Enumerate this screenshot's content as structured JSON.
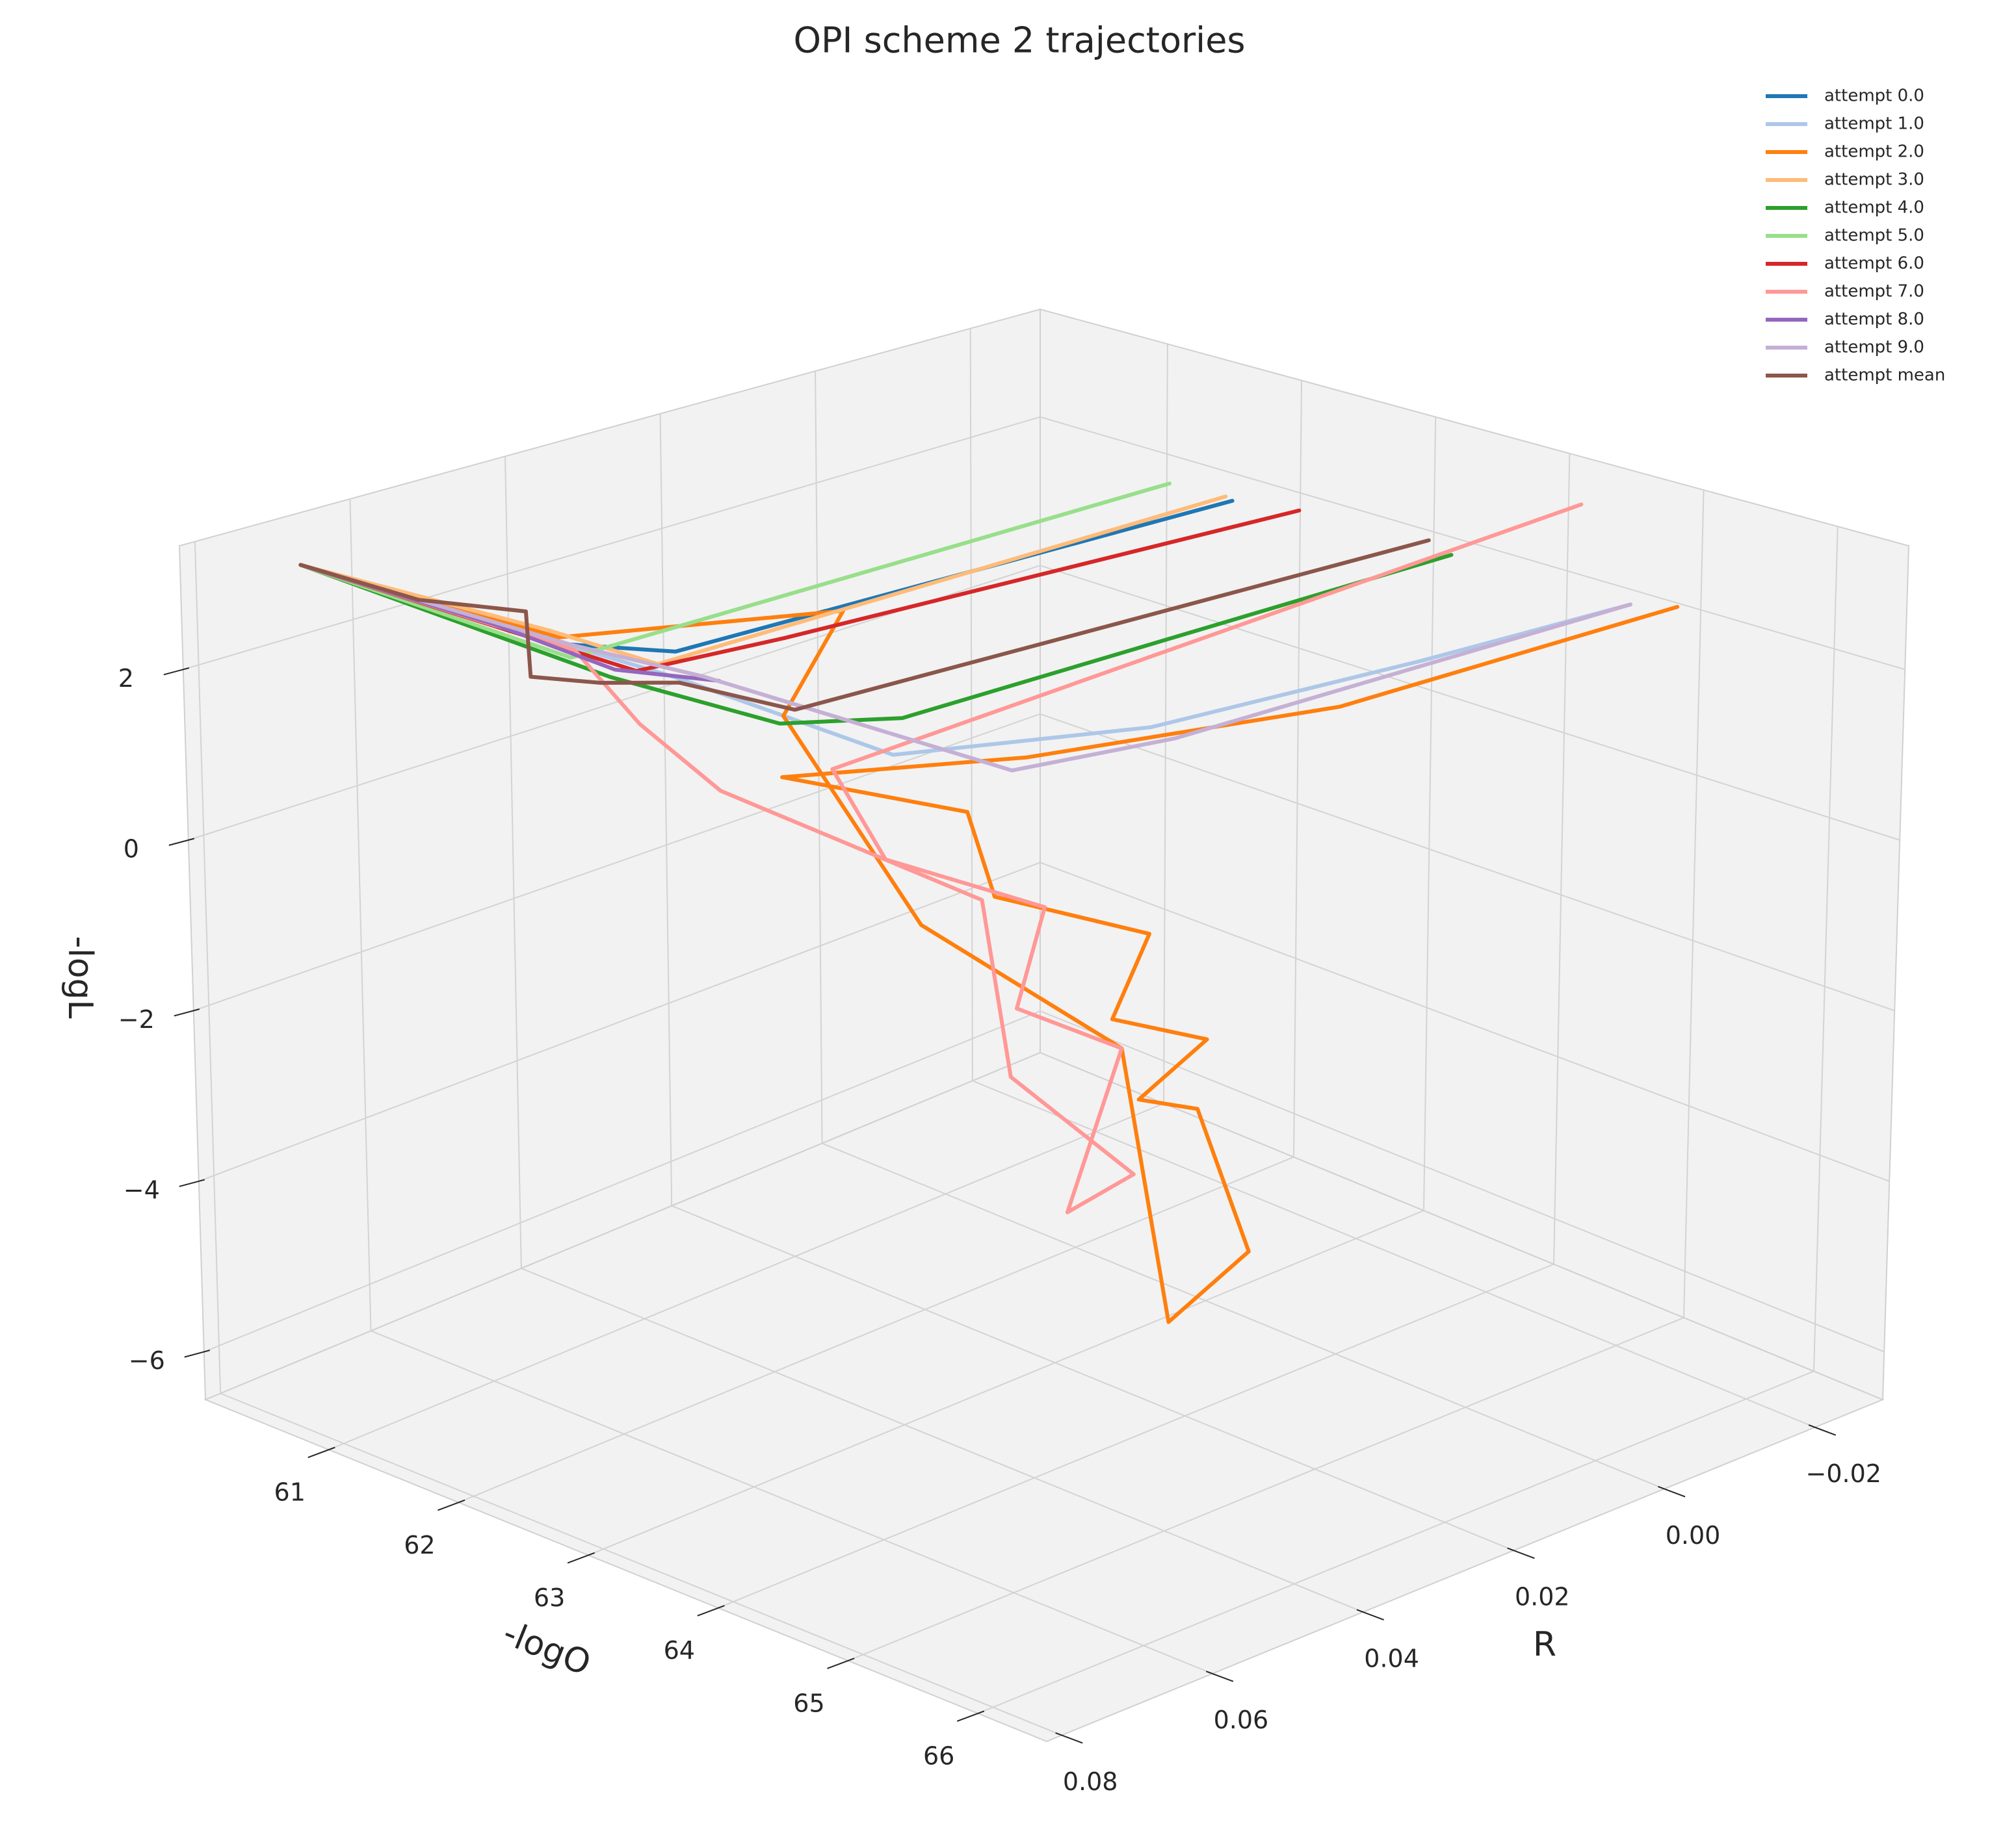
{
  "chart_data": {
    "type": "line3d",
    "title": "OPI scheme 2 trajectories",
    "xlabel": "R",
    "ylabel": "-logO",
    "zlabel": "-logL",
    "xlim": [
      -0.029,
      0.082
    ],
    "ylim": [
      60.05,
      66.53
    ],
    "zlim": [
      -6.56,
      3.45
    ],
    "xticks": [
      {
        "value": -0.02,
        "label": "−0.02"
      },
      {
        "value": 0,
        "label": "0.00"
      },
      {
        "value": 0.02,
        "label": "0.02"
      },
      {
        "value": 0.04,
        "label": "0.04"
      },
      {
        "value": 0.06,
        "label": "0.06"
      },
      {
        "value": 0.08,
        "label": "0.08"
      }
    ],
    "yticks": [
      61,
      62,
      63,
      64,
      65,
      66
    ],
    "zticks": [
      {
        "value": -6,
        "label": "−6"
      },
      {
        "value": -4,
        "label": "−4"
      },
      {
        "value": -2,
        "label": "−2"
      },
      0,
      2
    ],
    "grid": true,
    "legend": "upper right",
    "series": [
      {
        "name": "attempt 0.0",
        "color": "#1f77b4",
        "x": [
          -0.02,
          0.05,
          0.061,
          0.072
        ],
        "y": [
          62.01,
          61.89,
          61.74,
          60.37
        ],
        "z": [
          2.16,
          2.15,
          2.45,
          3.1
        ]
      },
      {
        "name": "attempt 1.0",
        "color": "#aec7e8",
        "x": [
          -0.02,
          0.004,
          0.033,
          0.056,
          0.058,
          0.072
        ],
        "y": [
          64.99,
          64.82,
          64.47,
          63.87,
          62.36,
          60.37
        ],
        "z": [
          2.29,
          2.15,
          1.95,
          1.95,
          2.25,
          3.1
        ]
      },
      {
        "name": "attempt 2.0",
        "color": "#ff7f0e",
        "x": [
          -0.02,
          0.016,
          0.048,
          0.058,
          0.054,
          0.051,
          0.049,
          0.05,
          0.048,
          0.046,
          0.044,
          0.033,
          0.038,
          0.037,
          0.043,
          0.054,
          0.046,
          0.06,
          0.072
        ],
        "y": [
          65.34,
          64.9,
          64.41,
          63.15,
          64.31,
          64.34,
          65.39,
          65.17,
          65.77,
          65.14,
          65.47,
          65.23,
          64.91,
          64.49,
          63.32,
          62.93,
          62.92,
          61.6,
          60.37
        ],
        "z": [
          2.42,
          1.95,
          1.95,
          1.45,
          1.45,
          0.45,
          0.45,
          -0.55,
          -0.55,
          -1.55,
          -1.55,
          -3.56,
          -4.36,
          -1.55,
          -0.55,
          1.95,
          2.95,
          2.45,
          3.1
        ]
      },
      {
        "name": "attempt 3.0",
        "color": "#ffbb78",
        "x": [
          -0.02,
          0.054,
          0.059,
          0.072
        ],
        "y": [
          61.96,
          61.99,
          61.47,
          60.37
        ],
        "z": [
          2.19,
          2.15,
          2.45,
          3.1
        ]
      },
      {
        "name": "attempt 4.0",
        "color": "#2ca02c",
        "x": [
          -0.02,
          0.051,
          0.056,
          0.06,
          0.072
        ],
        "y": [
          63.65,
          63.65,
          63.02,
          61.98,
          60.37
        ],
        "z": [
          2.27,
          2.15,
          1.95,
          2.15,
          3.1
        ]
      },
      {
        "name": "attempt 5.0",
        "color": "#98df8a",
        "x": [
          -0.02,
          0.058,
          0.072
        ],
        "y": [
          61.54,
          61.57,
          60.37
        ],
        "z": [
          2.15,
          2.15,
          3.1
        ]
      },
      {
        "name": "attempt 6.0",
        "color": "#d62728",
        "x": [
          -0.02,
          0.042,
          0.053,
          0.072
        ],
        "y": [
          62.51,
          62.24,
          61.77,
          60.37
        ],
        "z": [
          2.28,
          2.25,
          1.95,
          3.1
        ]
      },
      {
        "name": "attempt 7.0",
        "color": "#ff9896",
        "x": [
          -0.02,
          0.057,
          0.05,
          0.05,
          0.054,
          0.046,
          0.046,
          0.043,
          0.041,
          0.043,
          0.061,
          0.059,
          0.058,
          0.072
        ],
        "y": [
          64.61,
          63.47,
          63.46,
          64.66,
          64.68,
          65.01,
          64.6,
          64.93,
          63.88,
          63.78,
          62.86,
          62.14,
          61.6,
          60.37
        ],
        "z": [
          3.32,
          1.65,
          0.45,
          0.45,
          -0.55,
          -1.05,
          -3.06,
          -2.56,
          -2.06,
          -0.05,
          1.25,
          1.65,
          2.25,
          3.1
        ]
      },
      {
        "name": "attempt 8.0",
        "color": "#9467bd",
        "x": [
          0.054,
          0.058,
          0.061,
          0.072
        ],
        "y": [
          62.45,
          61.9,
          61.17,
          60.37
        ],
        "z": [
          2.15,
          2.15,
          2.45,
          3.1
        ]
      },
      {
        "name": "attempt 9.0",
        "color": "#c5b0d5",
        "x": [
          -0.02,
          0.034,
          0.052,
          0.054,
          0.061,
          0.072
        ],
        "y": [
          64.99,
          64.71,
          64.53,
          62.34,
          61.74,
          60.37
        ],
        "z": [
          2.29,
          1.95,
          1.95,
          2.15,
          2.45,
          3.1
        ]
      },
      {
        "name": "attempt mean",
        "color": "#8c564b",
        "x": [
          -0.02,
          0.058,
          0.059,
          0.058,
          0.061,
          0.056,
          0.06,
          0.072
        ],
        "y": [
          63.48,
          63.25,
          62.44,
          61.79,
          61.44,
          61.12,
          60.55,
          60.37
        ],
        "z": [
          2.37,
          2.25,
          2.25,
          1.95,
          1.95,
          2.45,
          2.45,
          3.1
        ]
      }
    ]
  }
}
